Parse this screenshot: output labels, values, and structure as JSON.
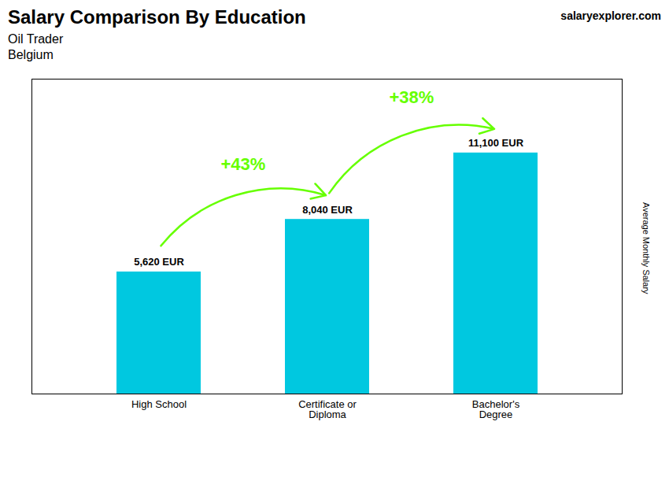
{
  "chart_data": {
    "type": "bar",
    "title": "Salary Comparison By Education",
    "subtitle": [
      "Oil Trader",
      "Belgium"
    ],
    "watermark": [
      "salary",
      "explorer",
      ".com"
    ],
    "ylabel": "Average Monthly Salary",
    "categories": [
      "High School",
      "Certificate or\nDiploma",
      "Bachelor's\nDegree"
    ],
    "values": [
      5620,
      8040,
      11100
    ],
    "value_labels": [
      "5,620 EUR",
      "8,040 EUR",
      "11,100 EUR"
    ],
    "data_labels": true,
    "color": "#00c8e0",
    "ylim": [
      0,
      14500
    ],
    "yticks": [],
    "tick_labels": "x",
    "grid": false,
    "annotations": [
      {
        "text": "+43%",
        "from": "High School",
        "to": "Certificate or\nDiploma",
        "color": "#66ff00"
      },
      {
        "text": "+38%",
        "from": "Certificate or\nDiploma",
        "to": "Bachelor's\nDegree",
        "color": "#66ff00"
      }
    ]
  }
}
